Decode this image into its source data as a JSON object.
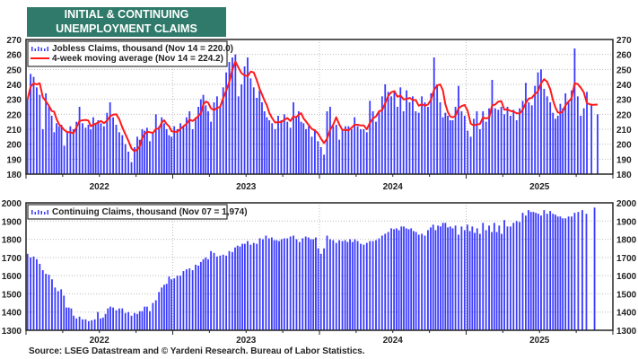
{
  "title": [
    "INITIAL & CONTINUING",
    "UNEMPLOYMENT CLAIMS"
  ],
  "source": "Source: LSEG Datastream and © Yardeni Research. Bureau of Labor Statistics.",
  "colors": {
    "title_bg": "#2f7a6a",
    "bars": "#3a3aff",
    "moving_average": "#ff1a1a",
    "grid": "#bbbbbb"
  },
  "chart_data": [
    {
      "type": "bar",
      "legend_placement": "top-left",
      "grid": true,
      "ylim": [
        180,
        270
      ],
      "yticks": [
        180,
        190,
        200,
        210,
        220,
        230,
        240,
        250,
        260,
        270
      ],
      "xlim": [
        "2022-01",
        "2025-12"
      ],
      "xtick_labels": [
        "2022",
        "2023",
        "2024",
        "2025"
      ],
      "series": [
        {
          "name": "Jobless Claims, thousand (Nov 14 = 220.0)",
          "type": "bar",
          "weekly_values_by_month": {
            "2022-01": [
              230,
              247,
              245,
              238
            ],
            "2022-02": [
              233,
              210,
              234,
              226
            ],
            "2022-03": [
              219,
              208,
              214,
              212,
              213
            ],
            "2022-04": [
              199,
              208,
              212,
              210
            ],
            "2022-05": [
              215,
              225,
              214,
              211
            ],
            "2022-06": [
              213,
              210,
              218,
              214,
              216
            ],
            "2022-07": [
              214,
              212,
              221,
              228
            ],
            "2022-08": [
              218,
              213,
              208,
              206
            ],
            "2022-09": [
              200,
              195,
              188,
              198
            ],
            "2022-10": [
              205,
              203,
              210,
              209,
              211
            ],
            "2022-11": [
              202,
              208,
              220,
              212
            ],
            "2022-12": [
              218,
              214,
              210,
              206,
              205
            ],
            "2023-01": [
              212,
              210,
              214,
              212
            ],
            "2023-02": [
              218,
              222,
              210,
              218
            ],
            "2023-03": [
              225,
              230,
              233,
              226,
              222
            ],
            "2023-04": [
              215,
              228,
              232,
              225
            ],
            "2023-05": [
              238,
              248,
              255,
              258
            ],
            "2023-06": [
              260,
              232,
              240,
              252
            ],
            "2023-07": [
              258,
              244,
              238,
              231
            ],
            "2023-08": [
              236,
              228,
              222,
              218,
              216
            ],
            "2023-09": [
              214,
              210,
              219,
              216
            ],
            "2023-10": [
              220,
              215,
              211,
              228
            ],
            "2023-11": [
              218,
              222,
              215,
              214,
              210
            ],
            "2023-12": [
              212,
              205,
              210,
              202
            ],
            "2024-01": [
              198,
              193,
              222,
              225
            ],
            "2024-02": [
              212,
              213,
              203,
              210
            ],
            "2024-03": [
              212,
              212,
              210,
              218
            ],
            "2024-04": [
              212,
              210,
              210,
              208
            ],
            "2024-05": [
              229,
              222,
              215,
              222
            ],
            "2024-06": [
              232,
              240,
              235,
              232
            ],
            "2024-07": [
              235,
              225,
              238,
              222
            ],
            "2024-08": [
              236,
              228,
              232,
              222
            ],
            "2024-09": [
              221,
              232,
              228,
              225
            ],
            "2024-10": [
              234,
              258,
              240,
              228
            ],
            "2024-11": [
              218,
              221,
              219,
              216,
              216
            ],
            "2024-12": [
              225,
              239,
              222,
              219
            ],
            "2025-01": [
              209,
              205,
              217,
              222
            ],
            "2025-02": [
              210,
              222,
              215,
              224
            ],
            "2025-03": [
              243,
              224,
              223,
              225
            ],
            "2025-04": [
              220,
              225,
              219,
              223
            ],
            "2025-05": [
              216,
              224,
              229,
              241
            ],
            "2025-06": [
              228,
              226,
              239,
              248
            ],
            "2025-07": [
              250,
              237,
              232,
              228
            ],
            "2025-08": [
              221,
              217,
              219,
              227,
              224
            ],
            "2025-09": [
              234,
              229,
              236,
              264
            ],
            "2025-10": [
              232,
              219,
              224,
              235
            ],
            "2025-11": [
              227,
              220
            ]
          }
        },
        {
          "name": "4-week moving average (Nov 14 = 224.2)",
          "type": "line",
          "of": "Jobless Claims, 4-week moving average"
        }
      ]
    },
    {
      "type": "bar",
      "legend_placement": "top-left",
      "grid": true,
      "ylim": [
        1300,
        2000
      ],
      "yticks": [
        1300,
        1400,
        1500,
        1600,
        1700,
        1800,
        1900,
        2000
      ],
      "xlim": [
        "2022-01",
        "2025-12"
      ],
      "xtick_labels": [
        "2022",
        "2023",
        "2024",
        "2025"
      ],
      "series": [
        {
          "name": "Continuing Claims, thousand (Nov 07 = 1,974)",
          "type": "bar",
          "weekly_values_by_month": {
            "2022-01": [
              1720,
              1700,
              1705,
              1690
            ],
            "2022-02": [
              1665,
              1630,
              1610,
              1605
            ],
            "2022-03": [
              1580,
              1535,
              1515,
              1525
            ],
            "2022-04": [
              1490,
              1425,
              1425,
              1420,
              1380
            ],
            "2022-05": [
              1365,
              1375,
              1360,
              1360
            ],
            "2022-06": [
              1350,
              1355,
              1360,
              1400
            ],
            "2022-07": [
              1365,
              1370,
              1390,
              1420,
              1430
            ],
            "2022-08": [
              1425,
              1410,
              1420,
              1420
            ],
            "2022-09": [
              1395,
              1400,
              1380,
              1395
            ],
            "2022-10": [
              1390,
              1405,
              1405,
              1430,
              1430
            ],
            "2022-11": [
              1405,
              1450,
              1465,
              1510
            ],
            "2022-12": [
              1535,
              1550,
              1555,
              1595,
              1580
            ],
            "2023-01": [
              1585,
              1600,
              1600,
              1625
            ],
            "2023-02": [
              1635,
              1640,
              1630,
              1660
            ],
            "2023-03": [
              1655,
              1675,
              1690,
              1700,
              1690
            ],
            "2023-04": [
              1735,
              1725,
              1705,
              1710
            ],
            "2023-05": [
              1715,
              1710,
              1735,
              1730
            ],
            "2023-06": [
              1755,
              1765,
              1760,
              1775,
              1775
            ],
            "2023-07": [
              1790,
              1770,
              1780,
              1775
            ],
            "2023-08": [
              1805,
              1800,
              1820,
              1805
            ],
            "2023-09": [
              1810,
              1795,
              1795,
              1790,
              1800
            ],
            "2023-10": [
              1805,
              1805,
              1815,
              1820
            ],
            "2023-11": [
              1800,
              1785,
              1805,
              1815
            ],
            "2023-12": [
              1810,
              1800,
              1800,
              1810,
              1750
            ],
            "2024-01": [
              1720,
              1750,
              1820,
              1800
            ],
            "2024-02": [
              1795,
              1780,
              1795,
              1790
            ],
            "2024-03": [
              1795,
              1785,
              1800,
              1785,
              1800
            ],
            "2024-04": [
              1790,
              1775,
              1770,
              1780
            ],
            "2024-05": [
              1790,
              1790,
              1795,
              1805
            ],
            "2024-06": [
              1820,
              1830,
              1840,
              1860
            ],
            "2024-07": [
              1855,
              1860,
              1850,
              1870,
              1870
            ],
            "2024-08": [
              1860,
              1855,
              1860,
              1845,
              1840
            ],
            "2024-09": [
              1825,
              1830,
              1820,
              1850
            ],
            "2024-10": [
              1865,
              1880,
              1850,
              1875,
              1870
            ],
            "2024-11": [
              1890,
              1890,
              1865,
              1870,
              1860
            ],
            "2024-12": [
              1875,
              1825,
              1870,
              1850
            ],
            "2025-01": [
              1880,
              1845,
              1870,
              1835,
              1860
            ],
            "2025-02": [
              1830,
              1890,
              1850,
              1875
            ],
            "2025-03": [
              1840,
              1890,
              1840,
              1875,
              1830
            ],
            "2025-04": [
              1905,
              1870,
              1870,
              1890
            ],
            "2025-05": [
              1900,
              1895,
              1945,
              1930
            ],
            "2025-06": [
              1960,
              1950,
              1950,
              1945,
              1940
            ],
            "2025-07": [
              1930,
              1960,
              1940,
              1955
            ],
            "2025-08": [
              1940,
              1935,
              1925,
              1925,
              1915
            ],
            "2025-09": [
              1915,
              1925,
              1925,
              1945
            ],
            "2025-10": [
              1950,
              1960,
              1940
            ],
            "2025-11": [
              1974
            ]
          }
        }
      ]
    }
  ]
}
